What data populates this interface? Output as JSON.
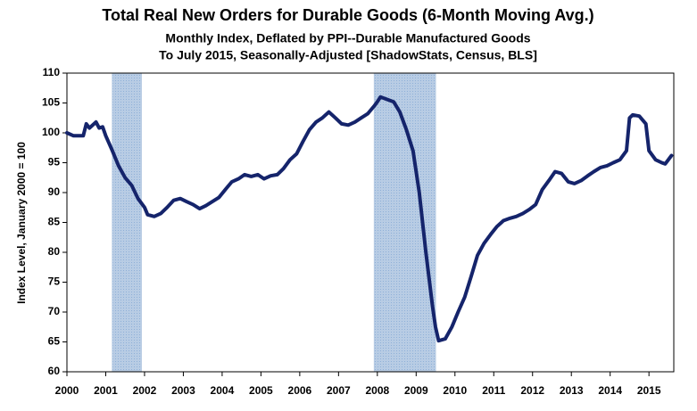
{
  "chart_data": {
    "type": "line",
    "title": "Total Real New Orders for Durable Goods (6-Month Moving Avg.)",
    "subtitle": [
      "Monthly Index, Deflated by PPI--Durable Manufactured Goods",
      "To July 2015, Seasonally-Adjusted [ShadowStats, Census, BLS]"
    ],
    "y_label": "Index Level, January 2000 = 100",
    "x": [
      2000.0,
      2000.17,
      2000.42,
      2000.5,
      2000.58,
      2000.75,
      2000.83,
      2000.92,
      2001.0,
      2001.17,
      2001.33,
      2001.5,
      2001.67,
      2001.83,
      2002.0,
      2002.08,
      2002.25,
      2002.42,
      2002.58,
      2002.75,
      2002.92,
      2003.08,
      2003.25,
      2003.42,
      2003.58,
      2003.75,
      2003.92,
      2004.08,
      2004.25,
      2004.42,
      2004.58,
      2004.75,
      2004.92,
      2005.08,
      2005.25,
      2005.42,
      2005.58,
      2005.75,
      2005.92,
      2006.08,
      2006.25,
      2006.42,
      2006.58,
      2006.75,
      2006.92,
      2007.08,
      2007.25,
      2007.42,
      2007.58,
      2007.75,
      2007.92,
      2008.0,
      2008.08,
      2008.25,
      2008.42,
      2008.58,
      2008.75,
      2008.92,
      2009.08,
      2009.25,
      2009.42,
      2009.5,
      2009.58,
      2009.75,
      2009.92,
      2010.08,
      2010.25,
      2010.42,
      2010.58,
      2010.75,
      2010.92,
      2011.08,
      2011.25,
      2011.42,
      2011.58,
      2011.75,
      2011.92,
      2012.08,
      2012.25,
      2012.42,
      2012.58,
      2012.75,
      2012.92,
      2013.08,
      2013.25,
      2013.42,
      2013.58,
      2013.75,
      2013.92,
      2014.08,
      2014.25,
      2014.42,
      2014.5,
      2014.58,
      2014.75,
      2014.92,
      2015.0,
      2015.17,
      2015.33,
      2015.42,
      2015.58
    ],
    "series": [
      {
        "color": "#15246b",
        "values": [
          100,
          99.5,
          99.5,
          101.5,
          100.8,
          101.8,
          100.8,
          101,
          99.5,
          97,
          94.5,
          92.5,
          91.2,
          89,
          87.5,
          86.3,
          86,
          86.5,
          87.5,
          88.7,
          89,
          88.5,
          88,
          87.3,
          87.8,
          88.5,
          89.2,
          90.5,
          91.8,
          92.3,
          93,
          92.7,
          93,
          92.3,
          92.8,
          93,
          94,
          95.5,
          96.5,
          98.5,
          100.5,
          101.8,
          102.5,
          103.5,
          102.5,
          101.5,
          101.3,
          101.8,
          102.5,
          103.2,
          104.5,
          105.2,
          106,
          105.6,
          105.2,
          103.5,
          100.5,
          97,
          90,
          80,
          71,
          67.5,
          65.2,
          65.5,
          67.5,
          70,
          72.5,
          76,
          79.5,
          81.5,
          83,
          84.3,
          85.3,
          85.7,
          86,
          86.5,
          87.2,
          88,
          90.5,
          92,
          93.5,
          93.2,
          91.8,
          91.5,
          92,
          92.8,
          93.5,
          94.2,
          94.5,
          95,
          95.5,
          97,
          102.5,
          103,
          102.8,
          101.5,
          97,
          95.5,
          95,
          94.8,
          96.2
        ]
      }
    ],
    "shaded_ranges": [
      [
        2001.17,
        2001.92
      ],
      [
        2007.92,
        2009.5
      ]
    ],
    "shade_color": "#b8cce4",
    "xlim": [
      2000,
      2015.64
    ],
    "xticks": [
      2000,
      2001,
      2002,
      2003,
      2004,
      2005,
      2006,
      2007,
      2008,
      2009,
      2010,
      2011,
      2012,
      2013,
      2014,
      2015
    ],
    "ylim": [
      60,
      110
    ],
    "yticks": [
      60,
      65,
      70,
      75,
      80,
      85,
      90,
      95,
      100,
      105,
      110
    ]
  }
}
